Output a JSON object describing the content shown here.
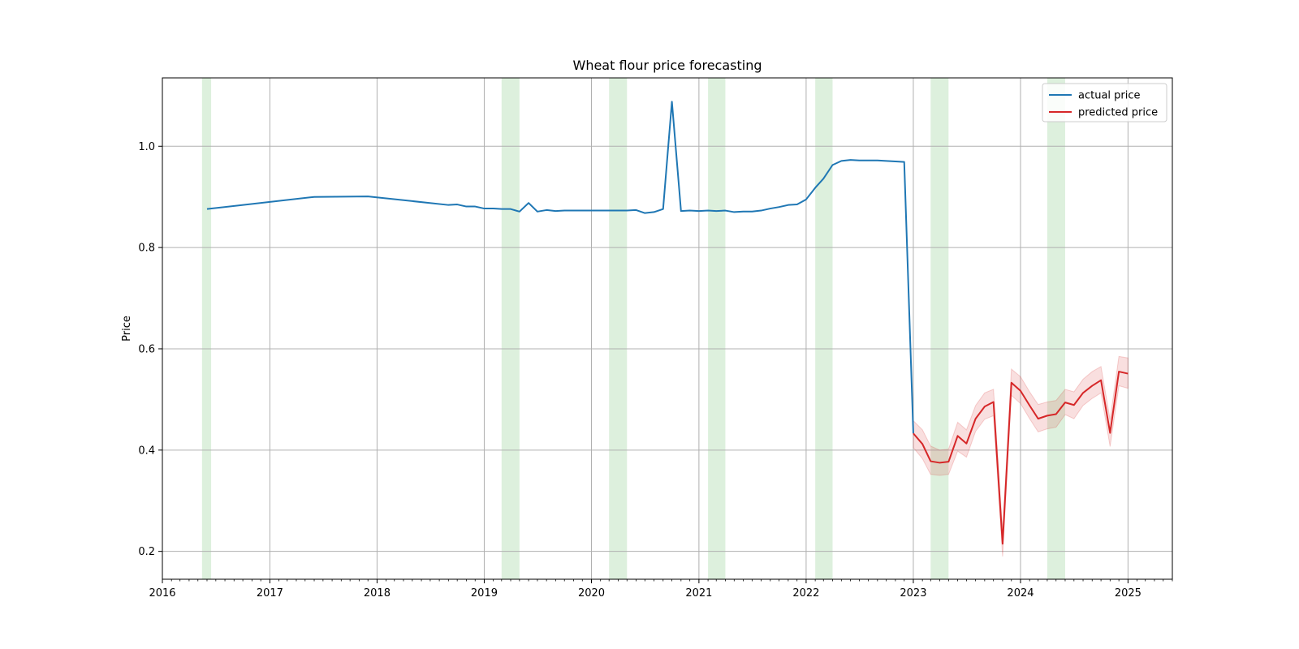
{
  "chart_data": {
    "type": "line",
    "title": "Wheat flour price forecasting",
    "xlabel": "",
    "ylabel": "Price",
    "xlim": [
      "2016-01-01",
      "2025-06-01"
    ],
    "ylim": [
      0.145,
      1.135
    ],
    "x_ticks": [
      "2016",
      "2017",
      "2018",
      "2019",
      "2020",
      "2021",
      "2022",
      "2023",
      "2024",
      "2025"
    ],
    "y_ticks": [
      "0.2",
      "0.4",
      "0.6",
      "0.8",
      "1.0"
    ],
    "y_tick_values": [
      0.2,
      0.4,
      0.6,
      0.8,
      1.0
    ],
    "grid": true,
    "legend_position": "top-right",
    "colors": {
      "actual": "#1f77b4",
      "predicted": "#d62728",
      "band": "#d62728",
      "highlight": "#2ca02c"
    },
    "highlight_periods": [
      [
        "2016-05-15",
        "2016-06-15"
      ],
      [
        "2019-03-01",
        "2019-05-01"
      ],
      [
        "2020-03-01",
        "2020-05-01"
      ],
      [
        "2021-02-01",
        "2021-04-01"
      ],
      [
        "2022-02-01",
        "2022-04-01"
      ],
      [
        "2023-03-01",
        "2023-05-01"
      ],
      [
        "2024-04-01",
        "2024-06-01"
      ]
    ],
    "series": [
      {
        "name": "actual price",
        "x": [
          "2016-06-01",
          "2017-06-01",
          "2017-12-01",
          "2018-09-01",
          "2018-10-01",
          "2018-11-01",
          "2018-12-01",
          "2019-01-01",
          "2019-02-01",
          "2019-03-01",
          "2019-04-01",
          "2019-05-01",
          "2019-06-01",
          "2019-07-01",
          "2019-08-01",
          "2019-09-01",
          "2019-10-01",
          "2019-11-01",
          "2019-12-01",
          "2020-01-01",
          "2020-02-01",
          "2020-03-01",
          "2020-04-01",
          "2020-05-01",
          "2020-06-01",
          "2020-07-01",
          "2020-08-01",
          "2020-09-01",
          "2020-10-01",
          "2020-11-01",
          "2020-12-01",
          "2021-01-01",
          "2021-02-01",
          "2021-03-01",
          "2021-04-01",
          "2021-05-01",
          "2021-06-01",
          "2021-07-01",
          "2021-08-01",
          "2021-09-01",
          "2021-10-01",
          "2021-11-01",
          "2021-12-01",
          "2022-01-01",
          "2022-02-01",
          "2022-03-01",
          "2022-04-01",
          "2022-05-01",
          "2022-06-01",
          "2022-07-01",
          "2022-08-01",
          "2022-09-01",
          "2022-10-01",
          "2022-11-01",
          "2022-12-01",
          "2023-01-01"
        ],
        "values": [
          0.876,
          0.9,
          0.901,
          0.884,
          0.885,
          0.881,
          0.881,
          0.877,
          0.877,
          0.876,
          0.876,
          0.871,
          0.888,
          0.871,
          0.874,
          0.872,
          0.873,
          0.873,
          0.873,
          0.873,
          0.873,
          0.873,
          0.873,
          0.873,
          0.874,
          0.868,
          0.87,
          0.876,
          1.088,
          0.872,
          0.873,
          0.872,
          0.873,
          0.872,
          0.873,
          0.87,
          0.871,
          0.871,
          0.873,
          0.877,
          0.88,
          0.884,
          0.885,
          0.895,
          0.918,
          0.936,
          0.963,
          0.971,
          0.973,
          0.972,
          0.972,
          0.972,
          0.971,
          0.97,
          0.969,
          0.433
        ]
      },
      {
        "name": "predicted price",
        "x": [
          "2023-01-01",
          "2023-02-01",
          "2023-03-01",
          "2023-04-01",
          "2023-05-01",
          "2023-06-01",
          "2023-07-01",
          "2023-08-01",
          "2023-09-01",
          "2023-10-01",
          "2023-11-01",
          "2023-12-01",
          "2024-01-01",
          "2024-02-01",
          "2024-03-01",
          "2024-04-01",
          "2024-05-01",
          "2024-06-01",
          "2024-07-01",
          "2024-08-01",
          "2024-09-01",
          "2024-10-01",
          "2024-11-01",
          "2024-12-01",
          "2025-01-01"
        ],
        "values": [
          0.433,
          0.412,
          0.378,
          0.375,
          0.377,
          0.428,
          0.413,
          0.462,
          0.486,
          0.495,
          0.215,
          0.533,
          0.517,
          0.488,
          0.462,
          0.468,
          0.471,
          0.494,
          0.489,
          0.513,
          0.527,
          0.538,
          0.434,
          0.555,
          0.551
        ],
        "lower": [
          0.405,
          0.383,
          0.352,
          0.35,
          0.352,
          0.398,
          0.386,
          0.437,
          0.461,
          0.468,
          0.19,
          0.508,
          0.492,
          0.462,
          0.436,
          0.442,
          0.445,
          0.47,
          0.462,
          0.488,
          0.502,
          0.513,
          0.407,
          0.527,
          0.522
        ],
        "upper": [
          0.458,
          0.44,
          0.408,
          0.4,
          0.402,
          0.455,
          0.44,
          0.488,
          0.513,
          0.52,
          0.24,
          0.56,
          0.545,
          0.515,
          0.49,
          0.495,
          0.498,
          0.52,
          0.515,
          0.54,
          0.555,
          0.565,
          0.46,
          0.585,
          0.582
        ]
      }
    ]
  }
}
